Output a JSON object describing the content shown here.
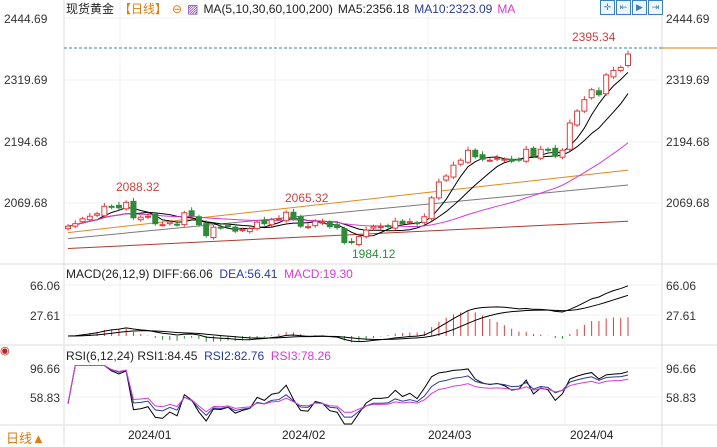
{
  "header": {
    "symbol": "现货黄金",
    "period": "【日线】",
    "ma_label": "MA(5,10,30,60,100,200)",
    "ma5": "MA5:2356.18",
    "ma10": "MA10:2323.09",
    "ma": "MA"
  },
  "toolbar": [
    {
      "icon": "crosshair-icon",
      "glyph": "✛"
    },
    {
      "icon": "zoom-range-icon",
      "glyph": "⇤"
    },
    {
      "icon": "play-icon",
      "glyph": "▶"
    },
    {
      "icon": "scroll-end-icon",
      "glyph": "⇥"
    }
  ],
  "price_axis": {
    "left": [
      "2444.69",
      "2319.69",
      "2194.68",
      "2069.68"
    ],
    "right": [
      "2444.69",
      "2319.69",
      "2194.68",
      "2069.68"
    ]
  },
  "annotations": {
    "high": "2395.34",
    "peak1": "2088.32",
    "peak2": "2065.32",
    "low": "1984.12"
  },
  "macd": {
    "label": "MACD(26,12,9)",
    "diff": "DIFF:66.06",
    "dea": "DEA:56.41",
    "macd": "MACD:19.30",
    "axis": [
      "66.06",
      "27.61"
    ]
  },
  "rsi": {
    "label": "RSI(6,12,24)",
    "rsi1": "RSI1:84.45",
    "rsi2": "RSI2:82.76",
    "rsi3": "RSI3:78.26",
    "axis": [
      "96.66",
      "58.83"
    ]
  },
  "footer": {
    "period": "日线▲",
    "months": [
      "2024/01",
      "2024/02",
      "2024/03",
      "2024/04"
    ]
  },
  "colors": {
    "up": "#e03c3c",
    "down": "#2e8b3a",
    "ma5": "#000000",
    "ma10": "#000000",
    "ma30": "#d63ad6",
    "ma60": "#e08a1e",
    "ma100": "#7a7a7a",
    "ma200": "#b03a2e",
    "accent": "#e07b10"
  },
  "chart_data": {
    "type": "candlestick",
    "closes": [
      2025,
      2030,
      2040,
      2045,
      2050,
      2065,
      2063,
      2062,
      2073,
      2042,
      2043,
      2045,
      2030,
      2028,
      2033,
      2028,
      2052,
      2046,
      2028,
      2006,
      2023,
      2022,
      2025,
      2015,
      2018,
      2020,
      2033,
      2030,
      2038,
      2040,
      2053,
      2040,
      2025,
      2024,
      2035,
      2033,
      2024,
      2022,
      1992,
      1992,
      2004,
      2017,
      2024,
      2024,
      2025,
      2035,
      2030,
      2034,
      2030,
      2044,
      2082,
      2114,
      2126,
      2148,
      2158,
      2178,
      2165,
      2160,
      2158,
      2162,
      2160,
      2156,
      2158,
      2180,
      2166,
      2180,
      2178,
      2166,
      2178,
      2233,
      2257,
      2280,
      2300,
      2290,
      2330,
      2339,
      2345,
      2372
    ],
    "long_ma": {
      "ma60": [
        2012,
        2138
      ],
      "ma100": [
        2000,
        2108
      ],
      "ma200": [
        1980,
        2035
      ]
    }
  }
}
